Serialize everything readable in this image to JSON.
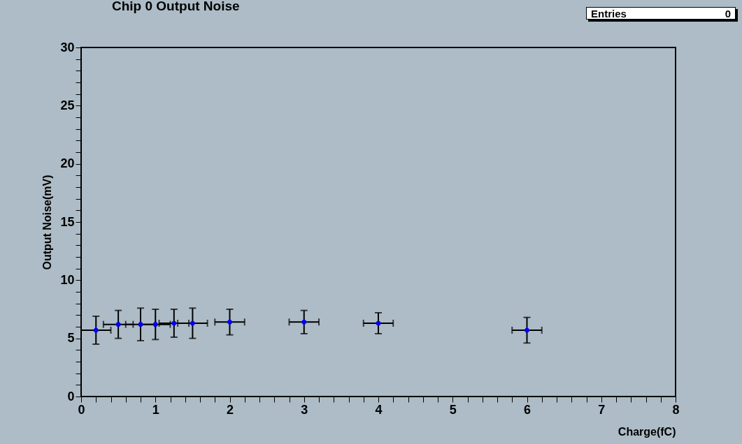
{
  "chart_data": {
    "type": "scatter",
    "title": "Chip 0 Output Noise",
    "xlabel": "Charge(fC)",
    "ylabel": "Output Noise(mV)",
    "annotations": [
      "Entries",
      "0"
    ],
    "x": [
      0.2,
      0.5,
      0.8,
      1.0,
      1.25,
      1.5,
      2,
      3,
      4,
      6
    ],
    "values": [
      5.7,
      6.2,
      6.2,
      6.2,
      6.3,
      6.3,
      6.4,
      6.4,
      6.3,
      5.7
    ],
    "errors": [
      1.2,
      1.2,
      1.4,
      1.3,
      1.2,
      1.3,
      1.1,
      1.0,
      0.9,
      1.1
    ],
    "xerrors": [
      0.2,
      0.2,
      0.2,
      0.2,
      0.2,
      0.2,
      0.2,
      0.2,
      0.2,
      0.2
    ],
    "color": "#0000ff",
    "marker": "circle",
    "grid": false,
    "xlim": [
      0,
      8
    ],
    "xticks": [
      0,
      {
        "value": 0.2,
        "label": null
      },
      {
        "value": 0.4,
        "label": null
      },
      {
        "value": 0.6,
        "label": null
      },
      {
        "value": 0.8,
        "label": null
      },
      1,
      {
        "value": 1.2,
        "label": null
      },
      {
        "value": 1.4,
        "label": null
      },
      {
        "value": 1.6,
        "label": null
      },
      {
        "value": 1.8,
        "label": null
      },
      2,
      {
        "value": 2.2,
        "label": null
      },
      {
        "value": 2.4,
        "label": null
      },
      {
        "value": 2.6,
        "label": null
      },
      {
        "value": 2.8,
        "label": null
      },
      3,
      {
        "value": 3.2,
        "label": null
      },
      {
        "value": 3.4,
        "label": null
      },
      {
        "value": 3.6,
        "label": null
      },
      {
        "value": 3.8,
        "label": null
      },
      4,
      {
        "value": 4.2,
        "label": null
      },
      {
        "value": 4.4,
        "label": null
      },
      {
        "value": 4.6,
        "label": null
      },
      {
        "value": 4.8,
        "label": null
      },
      5,
      {
        "value": 5.2,
        "label": null
      },
      {
        "value": 5.4,
        "label": null
      },
      {
        "value": 5.6,
        "label": null
      },
      {
        "value": 5.8,
        "label": null
      },
      6,
      {
        "value": 6.2,
        "label": null
      },
      {
        "value": 6.4,
        "label": null
      },
      {
        "value": 6.6,
        "label": null
      },
      {
        "value": 6.8,
        "label": null
      },
      7,
      {
        "value": 7.2,
        "label": null
      },
      {
        "value": 7.4,
        "label": null
      },
      {
        "value": 7.6,
        "label": null
      },
      {
        "value": 7.8,
        "label": null
      },
      8
    ],
    "ylim": [
      0,
      30
    ],
    "yticks": [
      0,
      {
        "value": 1,
        "label": null
      },
      {
        "value": 2,
        "label": null
      },
      {
        "value": 3,
        "label": null
      },
      {
        "value": 4,
        "label": null
      },
      5,
      {
        "value": 6,
        "label": null
      },
      {
        "value": 7,
        "label": null
      },
      {
        "value": 8,
        "label": null
      },
      {
        "value": 9,
        "label": null
      },
      10,
      {
        "value": 11,
        "label": null
      },
      {
        "value": 12,
        "label": null
      },
      {
        "value": 13,
        "label": null
      },
      {
        "value": 14,
        "label": null
      },
      15,
      {
        "value": 16,
        "label": null
      },
      {
        "value": 17,
        "label": null
      },
      {
        "value": 18,
        "label": null
      },
      {
        "value": 19,
        "label": null
      },
      20,
      {
        "value": 21,
        "label": null
      },
      {
        "value": 22,
        "label": null
      },
      {
        "value": 23,
        "label": null
      },
      {
        "value": 24,
        "label": null
      },
      25,
      {
        "value": 26,
        "label": null
      },
      {
        "value": 27,
        "label": null
      },
      {
        "value": 28,
        "label": null
      },
      {
        "value": 29,
        "label": null
      },
      30
    ]
  }
}
